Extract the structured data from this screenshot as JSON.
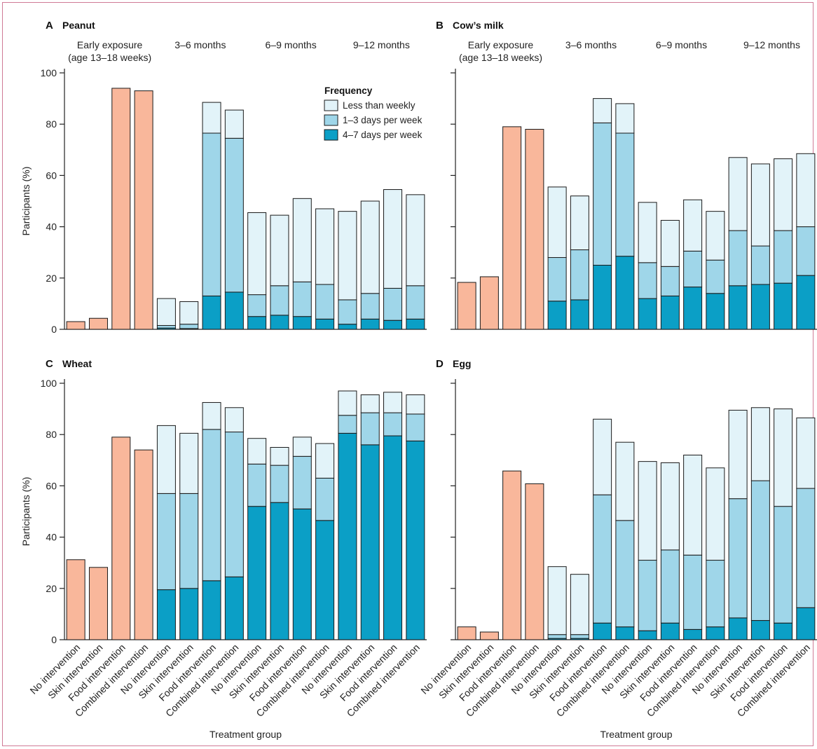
{
  "colors": {
    "early": "#f9b79b",
    "less": "#e2f3f9",
    "mid": "#9fd6e9",
    "high": "#0b9fc6"
  },
  "legend": {
    "title": "Frequency",
    "items": [
      {
        "key": "less",
        "label": "Less than weekly"
      },
      {
        "key": "mid",
        "label": "1–3 days per week"
      },
      {
        "key": "high",
        "label": "4–7 days per week"
      }
    ]
  },
  "x_axis_label": "Treatment group",
  "y_axis_label": "Participants (%)",
  "categories": [
    "No intervention",
    "Skin intervention",
    "Food intervention",
    "Combined intervention",
    "No intervention",
    "Skin intervention",
    "Food intervention",
    "Combined intervention",
    "No intervention",
    "Skin intervention",
    "Food intervention",
    "Combined intervention",
    "No intervention",
    "Skin intervention",
    "Food intervention",
    "Combined intervention"
  ],
  "group_labels": [
    {
      "lines": [
        "Early exposure",
        "(age 13–18 weeks)"
      ]
    },
    {
      "lines": [
        "3–6 months"
      ]
    },
    {
      "lines": [
        "6–9 months"
      ]
    },
    {
      "lines": [
        "9–12 months"
      ]
    }
  ],
  "chart_data": [
    {
      "type": "bar",
      "letter": "A",
      "name": "Peanut",
      "ylim": [
        0,
        100
      ],
      "yticks": [
        0,
        20,
        40,
        60,
        80,
        100
      ],
      "early": [
        3,
        4.3,
        94,
        93
      ],
      "series": [
        {
          "name": "4–7 days per week",
          "values": [
            0.5,
            0.3,
            13,
            14.5,
            5,
            5.5,
            5,
            4,
            2,
            4,
            3.5,
            4
          ]
        },
        {
          "name": "1–3 days per week",
          "values": [
            1,
            1.7,
            63.5,
            60,
            8.5,
            11.5,
            13.5,
            13.5,
            9.5,
            10,
            12.5,
            13
          ]
        },
        {
          "name": "Less than weekly",
          "values": [
            10.5,
            8.8,
            12,
            11,
            32,
            27.5,
            32.5,
            29.5,
            34.5,
            36,
            38.5,
            35.5
          ]
        }
      ]
    },
    {
      "type": "bar",
      "letter": "B",
      "name": "Cow’s milk",
      "ylim": [
        0,
        100
      ],
      "yticks": [
        0,
        20,
        40,
        60,
        80,
        100
      ],
      "early": [
        18.3,
        20.5,
        79,
        78
      ],
      "series": [
        {
          "name": "4–7 days per week",
          "values": [
            11,
            11.5,
            25,
            28.5,
            12,
            13,
            16.5,
            14,
            17,
            17.5,
            18,
            21
          ]
        },
        {
          "name": "1–3 days per week",
          "values": [
            17,
            19.5,
            55.5,
            48,
            14,
            11.5,
            14,
            13,
            21.5,
            15,
            20.5,
            19
          ]
        },
        {
          "name": "Less than weekly",
          "values": [
            27.5,
            21,
            9.5,
            11.5,
            23.5,
            18,
            20,
            19,
            28.5,
            32,
            28,
            28.5
          ]
        }
      ]
    },
    {
      "type": "bar",
      "letter": "C",
      "name": "Wheat",
      "ylim": [
        0,
        100
      ],
      "yticks": [
        0,
        20,
        40,
        60,
        80,
        100
      ],
      "early": [
        31.2,
        28.2,
        79,
        74
      ],
      "series": [
        {
          "name": "4–7 days per week",
          "values": [
            19.5,
            20,
            23,
            24.5,
            52,
            53.5,
            51,
            46.5,
            80.5,
            76,
            79.5,
            77.5
          ]
        },
        {
          "name": "1–3 days per week",
          "values": [
            37.5,
            37,
            59,
            56.5,
            16.5,
            14.5,
            20.5,
            16.5,
            7,
            12.5,
            9,
            10.5
          ]
        },
        {
          "name": "Less than weekly",
          "values": [
            26.5,
            23.5,
            10.5,
            9.5,
            10,
            7,
            7.5,
            13.5,
            9.5,
            7,
            8,
            7.5
          ]
        }
      ]
    },
    {
      "type": "bar",
      "letter": "D",
      "name": "Egg",
      "ylim": [
        0,
        100
      ],
      "yticks": [
        0,
        20,
        40,
        60,
        80,
        100
      ],
      "early": [
        5,
        3,
        65.8,
        60.8
      ],
      "series": [
        {
          "name": "4–7 days per week",
          "values": [
            0.5,
            0.5,
            6.5,
            5,
            3.5,
            6.5,
            4,
            5,
            8.5,
            7.5,
            6.5,
            12.5
          ]
        },
        {
          "name": "1–3 days per week",
          "values": [
            1.5,
            1.5,
            50,
            41.5,
            27.5,
            28.5,
            29,
            26,
            46.5,
            54.5,
            45.5,
            46.5
          ]
        },
        {
          "name": "Less than weekly",
          "values": [
            26.5,
            23.5,
            29.5,
            30.5,
            38.5,
            34,
            39,
            36,
            34.5,
            28.5,
            38,
            27.5
          ]
        }
      ]
    }
  ]
}
